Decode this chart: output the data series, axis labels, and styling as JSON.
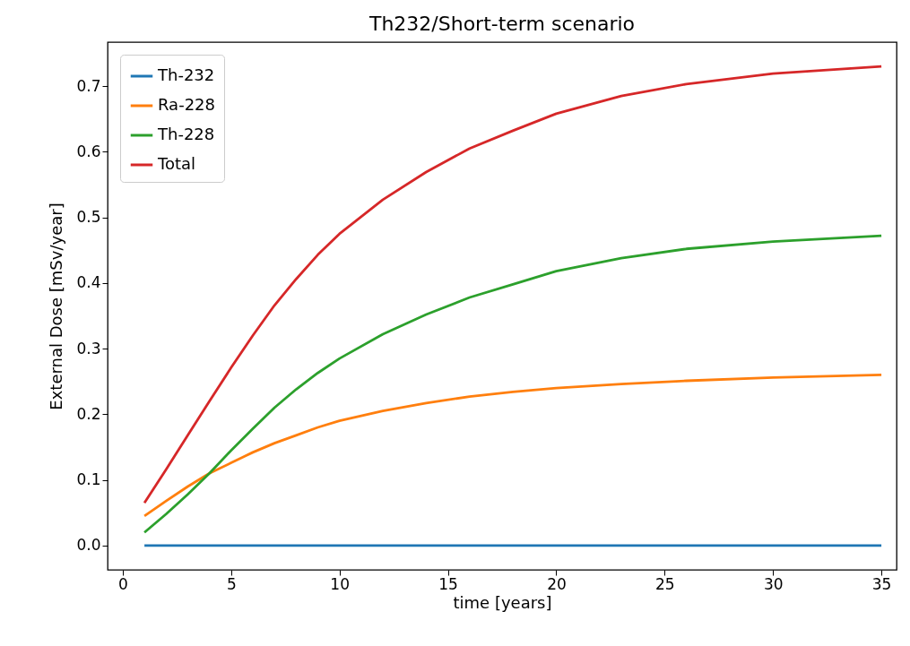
{
  "chart_data": {
    "type": "line",
    "title": "Th232/Short-term scenario",
    "xlabel": "time [years]",
    "ylabel": "External Dose [mSv/year]",
    "x": [
      1,
      2,
      3,
      4,
      5,
      6,
      7,
      8,
      9,
      10,
      12,
      14,
      16,
      18,
      20,
      23,
      26,
      30,
      35
    ],
    "series": [
      {
        "name": "Th-232",
        "color": "#1f77b4",
        "values": [
          0,
          0,
          0,
          0,
          0,
          0,
          0,
          0,
          0,
          0,
          0,
          0,
          0,
          0,
          0,
          0,
          0,
          0,
          0
        ]
      },
      {
        "name": "Ra-228",
        "color": "#ff7f0e",
        "values": [
          0.045,
          0.068,
          0.09,
          0.11,
          0.126,
          0.142,
          0.156,
          0.168,
          0.18,
          0.19,
          0.205,
          0.217,
          0.227,
          0.234,
          0.24,
          0.246,
          0.251,
          0.256,
          0.26
        ]
      },
      {
        "name": "Th-228",
        "color": "#2ca02c",
        "values": [
          0.02,
          0.048,
          0.078,
          0.11,
          0.145,
          0.178,
          0.21,
          0.238,
          0.263,
          0.285,
          0.322,
          0.352,
          0.378,
          0.398,
          0.418,
          0.438,
          0.452,
          0.463,
          0.472
        ]
      },
      {
        "name": "Total",
        "color": "#d62728",
        "values": [
          0.065,
          0.116,
          0.168,
          0.22,
          0.271,
          0.32,
          0.366,
          0.406,
          0.443,
          0.475,
          0.527,
          0.569,
          0.605,
          0.632,
          0.658,
          0.685,
          0.703,
          0.719,
          0.73
        ]
      }
    ],
    "xlim": [
      -0.7,
      35.7
    ],
    "ylim": [
      -0.037,
      0.767
    ],
    "xticks": [
      0,
      5,
      10,
      15,
      20,
      25,
      30,
      35
    ],
    "yticks": [
      {
        "value": 0,
        "label": "0.0"
      },
      0.1,
      0.2,
      0.3,
      0.4,
      0.5,
      0.6,
      0.7
    ],
    "grid": false,
    "legend": "top left",
    "marker": "none",
    "line_style": "solid"
  }
}
